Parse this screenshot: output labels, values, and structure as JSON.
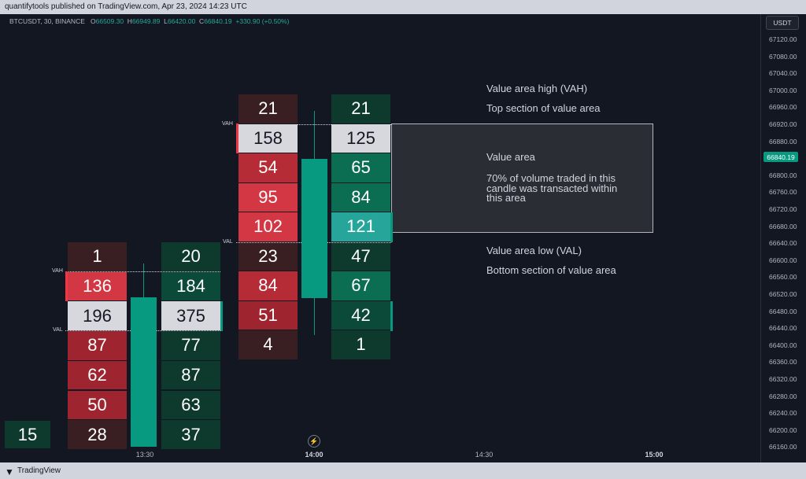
{
  "header": {
    "published": "quantifytools published on TradingView.com, Apr 23, 2024 14:23 UTC"
  },
  "symbol_bar": {
    "symbol": "BTCUSDT, 30, BINANCE",
    "o_label": "O",
    "o_value": "66509.30",
    "h_label": "H",
    "h_value": "66949.89",
    "l_label": "L",
    "l_value": "66420.00",
    "c_label": "C",
    "c_value": "66840.19",
    "change": "+330.90 (+0.50%)"
  },
  "price_scale": {
    "currency": "USDT",
    "ticks": [
      "67120.00",
      "67080.00",
      "67040.00",
      "67000.00",
      "66960.00",
      "66920.00",
      "66880.00",
      "66840.00",
      "66800.00",
      "66760.00",
      "66720.00",
      "66680.00",
      "66640.00",
      "66600.00",
      "66560.00",
      "66520.00",
      "66480.00",
      "66440.00",
      "66400.00",
      "66360.00",
      "66320.00",
      "66280.00",
      "66240.00",
      "66200.00",
      "66160.00"
    ],
    "last_price": "66840.19"
  },
  "time_axis": [
    "13:30",
    "14:00",
    "14:30",
    "15:00"
  ],
  "footprint": {
    "partial_cell": "15",
    "candle1": {
      "sell": [
        "1",
        "136",
        "196",
        "87",
        "62",
        "50",
        "28"
      ],
      "buy": [
        "20",
        "184",
        "375",
        "77",
        "87",
        "63",
        "37"
      ],
      "vah_label": "VAH",
      "val_label": "VAL"
    },
    "candle2": {
      "sell": [
        "21",
        "158",
        "54",
        "95",
        "102",
        "23",
        "84",
        "51",
        "4"
      ],
      "buy": [
        "21",
        "125",
        "65",
        "84",
        "121",
        "47",
        "67",
        "42",
        "1"
      ],
      "vah_label": "VAH",
      "val_label": "VAL"
    }
  },
  "annotations": {
    "vah_title": "Value area high (VAH)",
    "vah_desc": "Top section of value area",
    "va_title": "Value area",
    "va_desc_1": "70% of volume traded in this",
    "va_desc_2": "candle was transacted within",
    "va_desc_3": "this area",
    "val_title": "Value area low (VAL)",
    "val_desc": "Bottom section of value area"
  },
  "footer": {
    "brand": "TradingView"
  },
  "colors": {
    "background": "#131722",
    "up": "#089981",
    "down": "#f23645"
  }
}
